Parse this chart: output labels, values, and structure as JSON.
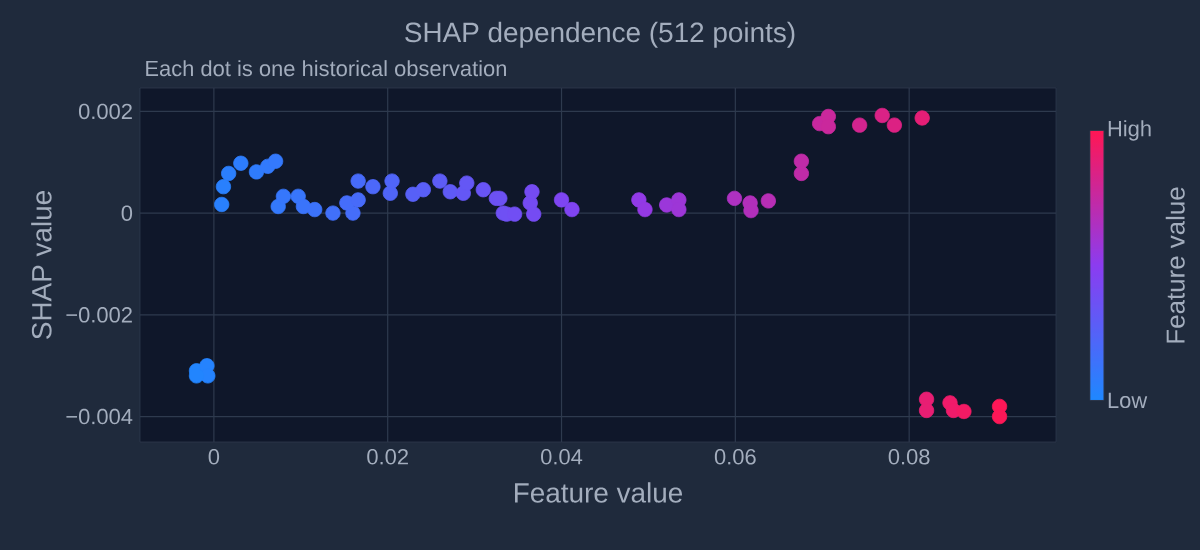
{
  "chart_data": {
    "type": "scatter",
    "title": "SHAP dependence (512 points)",
    "subtitle": "Each dot is one historical observation",
    "xlabel": "Feature value",
    "ylabel": "SHAP value",
    "clabel": "Feature value",
    "x": [
      -0.002,
      -0.0008,
      -0.0007,
      -0.002,
      0.0009,
      0.0011,
      0.0017,
      0.0031,
      0.0049,
      0.0062,
      0.0071,
      0.0074,
      0.008,
      0.0097,
      0.0103,
      0.0116,
      0.0137,
      0.016,
      0.0153,
      0.0166,
      0.0166,
      0.0183,
      0.0203,
      0.0205,
      0.0229,
      0.0241,
      0.026,
      0.0272,
      0.0287,
      0.0291,
      0.031,
      0.0325,
      0.0329,
      0.0333,
      0.0337,
      0.0346,
      0.0364,
      0.0366,
      0.0368,
      0.04,
      0.0412,
      0.0489,
      0.0496,
      0.0521,
      0.0535,
      0.0535,
      0.0599,
      0.0617,
      0.0618,
      0.0638,
      0.0676,
      0.0676,
      0.0697,
      0.0707,
      0.0707,
      0.0743,
      0.0769,
      0.0783,
      0.0815,
      0.082,
      0.082,
      0.0847,
      0.0851,
      0.0863,
      0.0904,
      0.0904
    ],
    "values": [
      -0.0031,
      -0.003,
      -0.0032,
      -0.0032,
      0.00017,
      0.00052,
      0.00078,
      0.00098,
      0.00081,
      0.00092,
      0.00102,
      0.00013,
      0.00033,
      0.00033,
      0.00013,
      7e-05,
      0.0,
      0.0,
      0.0002,
      0.00026,
      0.00063,
      0.00052,
      0.00039,
      0.00063,
      0.00037,
      0.00046,
      0.00063,
      0.00042,
      0.00039,
      0.00059,
      0.00046,
      0.00029,
      0.00029,
      0.0,
      -2e-05,
      -2e-05,
      0.0002,
      0.00042,
      -2e-05,
      0.00026,
      7e-05,
      0.00026,
      7e-05,
      0.00016,
      0.00026,
      7e-05,
      0.00029,
      0.0002,
      5e-05,
      0.00024,
      0.00102,
      0.00078,
      0.00176,
      0.0019,
      0.0017,
      0.00173,
      0.00192,
      0.00173,
      0.00187,
      -0.00366,
      -0.00388,
      -0.00373,
      -0.00388,
      -0.0039,
      -0.0038,
      -0.004
    ],
    "cvalues": [
      0.02,
      0.03,
      0.03,
      0.02,
      0.05,
      0.05,
      0.06,
      0.07,
      0.08,
      0.09,
      0.1,
      0.1,
      0.11,
      0.12,
      0.13,
      0.14,
      0.16,
      0.18,
      0.18,
      0.19,
      0.19,
      0.21,
      0.23,
      0.23,
      0.26,
      0.27,
      0.29,
      0.3,
      0.32,
      0.32,
      0.34,
      0.36,
      0.36,
      0.37,
      0.37,
      0.38,
      0.4,
      0.4,
      0.4,
      0.44,
      0.45,
      0.53,
      0.54,
      0.57,
      0.58,
      0.58,
      0.65,
      0.67,
      0.67,
      0.69,
      0.73,
      0.73,
      0.76,
      0.77,
      0.77,
      0.81,
      0.84,
      0.85,
      0.89,
      0.9,
      0.9,
      0.93,
      0.93,
      0.95,
      0.99,
      0.99
    ],
    "xlim": [
      -0.0085,
      0.0969
    ],
    "ylim": [
      -0.0045,
      0.00246
    ],
    "xticks": [
      0,
      0.02,
      0.04,
      0.06,
      0.08
    ],
    "yticks": [
      {
        "value": -0.004,
        "label": "−0.004"
      },
      {
        "value": -0.002,
        "label": "−0.002"
      },
      0,
      0.002
    ],
    "clim": [
      0,
      1
    ],
    "cticks": [
      {
        "value": 0,
        "label": "Low"
      },
      {
        "value": 1,
        "label": "High"
      }
    ],
    "grid": true,
    "marker": "circle"
  }
}
